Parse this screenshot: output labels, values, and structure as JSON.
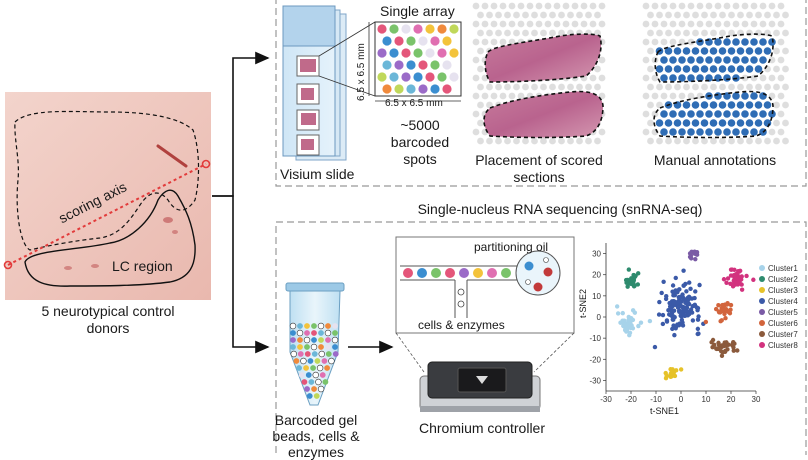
{
  "tissue": {
    "donors_label_line1": "5 neurotypical control",
    "donors_label_line2": "donors",
    "scoring_axis": "scoring axis",
    "lc_region": "LC region"
  },
  "visium": {
    "slide_label": "Visium slide",
    "single_array": "Single array",
    "dim_vertical": "6.5 x 6.5 mm",
    "dim_horizontal": "6.5 x 6.5 mm",
    "spots_line1": "~5000",
    "spots_line2": "barcoded",
    "spots_line3": "spots",
    "placement_line1": "Placement of scored",
    "placement_line2": "sections",
    "manual": "Manual annotations"
  },
  "snrna": {
    "title": "Single-nucleus RNA sequencing (snRNA-seq)",
    "partitioning_oil": "partitioning oil",
    "cells_enzymes": "cells & enzymes",
    "tube_line1": "Barcoded gel",
    "tube_line2": "beads, cells &",
    "tube_line3": "enzymes",
    "controller": "Chromium controller"
  },
  "chart_data": {
    "type": "scatter",
    "xlabel": "t-SNE1",
    "ylabel": "t-SNE2",
    "xlim": [
      -30,
      30
    ],
    "ylim": [
      -35,
      35
    ],
    "xticks": [
      -30,
      -20,
      -10,
      0,
      10,
      20,
      30
    ],
    "yticks": [
      -30,
      -20,
      -10,
      0,
      10,
      20,
      30
    ],
    "series": [
      {
        "name": "Cluster1",
        "color": "#a7d3ea",
        "center": [
          -21,
          -3
        ],
        "spread": [
          4,
          5
        ],
        "n": 40
      },
      {
        "name": "Cluster2",
        "color": "#2e8b6e",
        "center": [
          -20,
          17
        ],
        "spread": [
          3,
          3
        ],
        "n": 26
      },
      {
        "name": "Cluster3",
        "color": "#e6c229",
        "center": [
          -4,
          -27
        ],
        "spread": [
          3,
          3
        ],
        "n": 18
      },
      {
        "name": "Cluster4",
        "color": "#3b5aa8",
        "center": [
          0,
          5
        ],
        "spread": [
          7,
          10
        ],
        "n": 140
      },
      {
        "name": "Cluster5",
        "color": "#7a5aa5",
        "center": [
          5,
          30
        ],
        "spread": [
          2,
          2
        ],
        "n": 12
      },
      {
        "name": "Cluster6",
        "color": "#d2643c",
        "center": [
          17,
          3
        ],
        "spread": [
          3,
          4
        ],
        "n": 30
      },
      {
        "name": "Cluster7",
        "color": "#8b5a3c",
        "center": [
          18,
          -14
        ],
        "spread": [
          5,
          3
        ],
        "n": 34
      },
      {
        "name": "Cluster8",
        "color": "#d2327e",
        "center": [
          22,
          18
        ],
        "spread": [
          4,
          4
        ],
        "n": 44
      }
    ]
  }
}
